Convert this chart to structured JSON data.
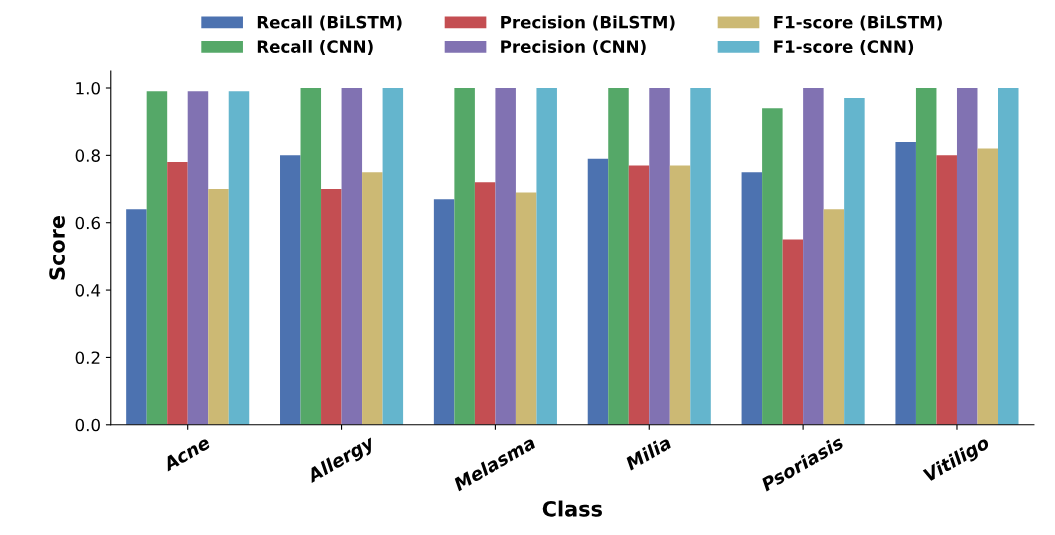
{
  "chart_data": {
    "type": "bar",
    "xlabel": "Class",
    "ylabel": "Score",
    "categories": [
      "Acne",
      "Allergy",
      "Melasma",
      "Milia",
      "Psoriasis",
      "Vitiligo"
    ],
    "series": [
      {
        "name": "Recall (BiLSTM)",
        "color": "#4c72b0",
        "values": [
          0.64,
          0.8,
          0.67,
          0.79,
          0.75,
          0.84
        ]
      },
      {
        "name": "Recall (CNN)",
        "color": "#55a868",
        "values": [
          0.99,
          1.0,
          1.0,
          1.0,
          0.94,
          1.0
        ]
      },
      {
        "name": "Precision (BiLSTM)",
        "color": "#c44e52",
        "values": [
          0.78,
          0.7,
          0.72,
          0.77,
          0.55,
          0.8
        ]
      },
      {
        "name": "Precision (CNN)",
        "color": "#8172b2",
        "values": [
          0.99,
          1.0,
          1.0,
          1.0,
          1.0,
          1.0
        ]
      },
      {
        "name": "F1-score (BiLSTM)",
        "color": "#ccb974",
        "values": [
          0.7,
          0.75,
          0.69,
          0.77,
          0.64,
          0.82
        ]
      },
      {
        "name": "F1-score (CNN)",
        "color": "#64b5cd",
        "values": [
          0.99,
          1.0,
          1.0,
          1.0,
          0.97,
          1.0
        ]
      }
    ],
    "ylim": [
      0,
      1.05
    ],
    "yticks": [
      {
        "value": 0,
        "label": "0.0"
      },
      0.2,
      0.4,
      0.6,
      0.8,
      {
        "value": 1,
        "label": "1.0"
      }
    ],
    "grid": false,
    "legend": "top"
  }
}
